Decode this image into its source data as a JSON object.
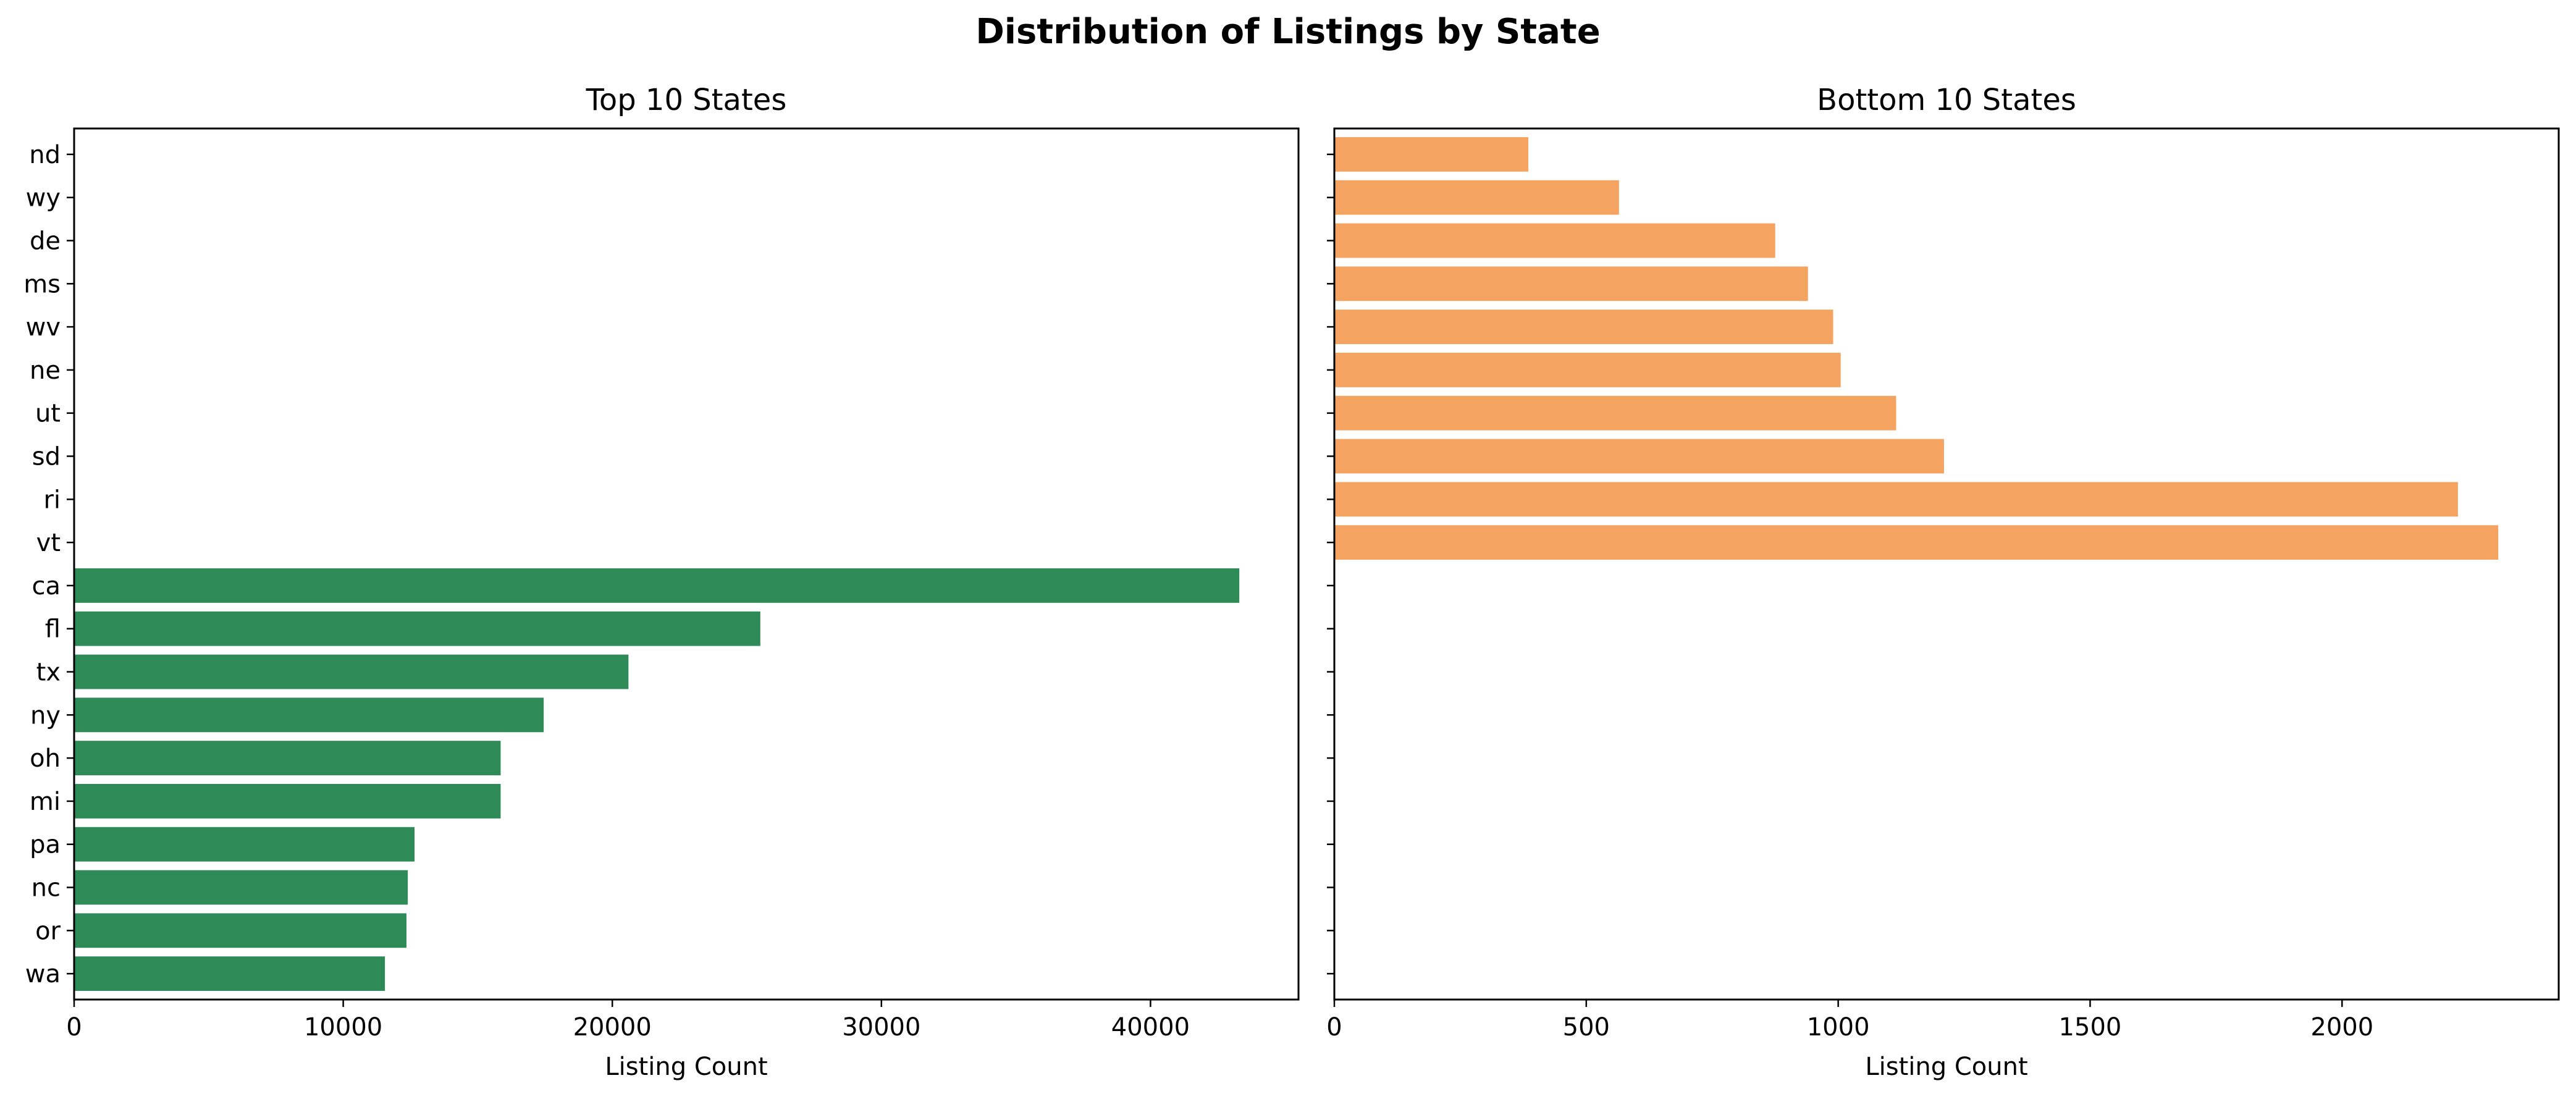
{
  "suptitle": "Distribution of Listings by State",
  "chart_data": [
    {
      "type": "bar",
      "orientation": "horizontal",
      "title": "Top 10 States",
      "xlabel": "Listing Count",
      "ylabel": "",
      "color": "#2e8b57",
      "xlim": [
        0,
        45500
      ],
      "xticks": [
        0,
        10000,
        20000,
        30000,
        40000
      ],
      "shared_y_categories": [
        "wa",
        "or",
        "nc",
        "pa",
        "mi",
        "oh",
        "ny",
        "tx",
        "fl",
        "ca",
        "vt",
        "ri",
        "sd",
        "ut",
        "ne",
        "wv",
        "ms",
        "de",
        "wy",
        "nd"
      ],
      "categories": [
        "wa",
        "or",
        "nc",
        "pa",
        "mi",
        "oh",
        "ny",
        "tx",
        "fl",
        "ca"
      ],
      "values": [
        11550,
        12350,
        12400,
        12650,
        15850,
        15850,
        17450,
        20600,
        25500,
        43300
      ],
      "grid": false
    },
    {
      "type": "bar",
      "orientation": "horizontal",
      "title": "Bottom 10 States",
      "xlabel": "Listing Count",
      "ylabel": "",
      "color": "#f4a460",
      "xlim": [
        0,
        2430
      ],
      "xticks": [
        0,
        500,
        1000,
        1500,
        2000
      ],
      "categories": [
        "vt",
        "ri",
        "sd",
        "ut",
        "ne",
        "wv",
        "ms",
        "de",
        "wy",
        "nd"
      ],
      "values": [
        2310,
        2230,
        1210,
        1115,
        1005,
        990,
        940,
        875,
        565,
        385
      ],
      "grid": false
    }
  ]
}
